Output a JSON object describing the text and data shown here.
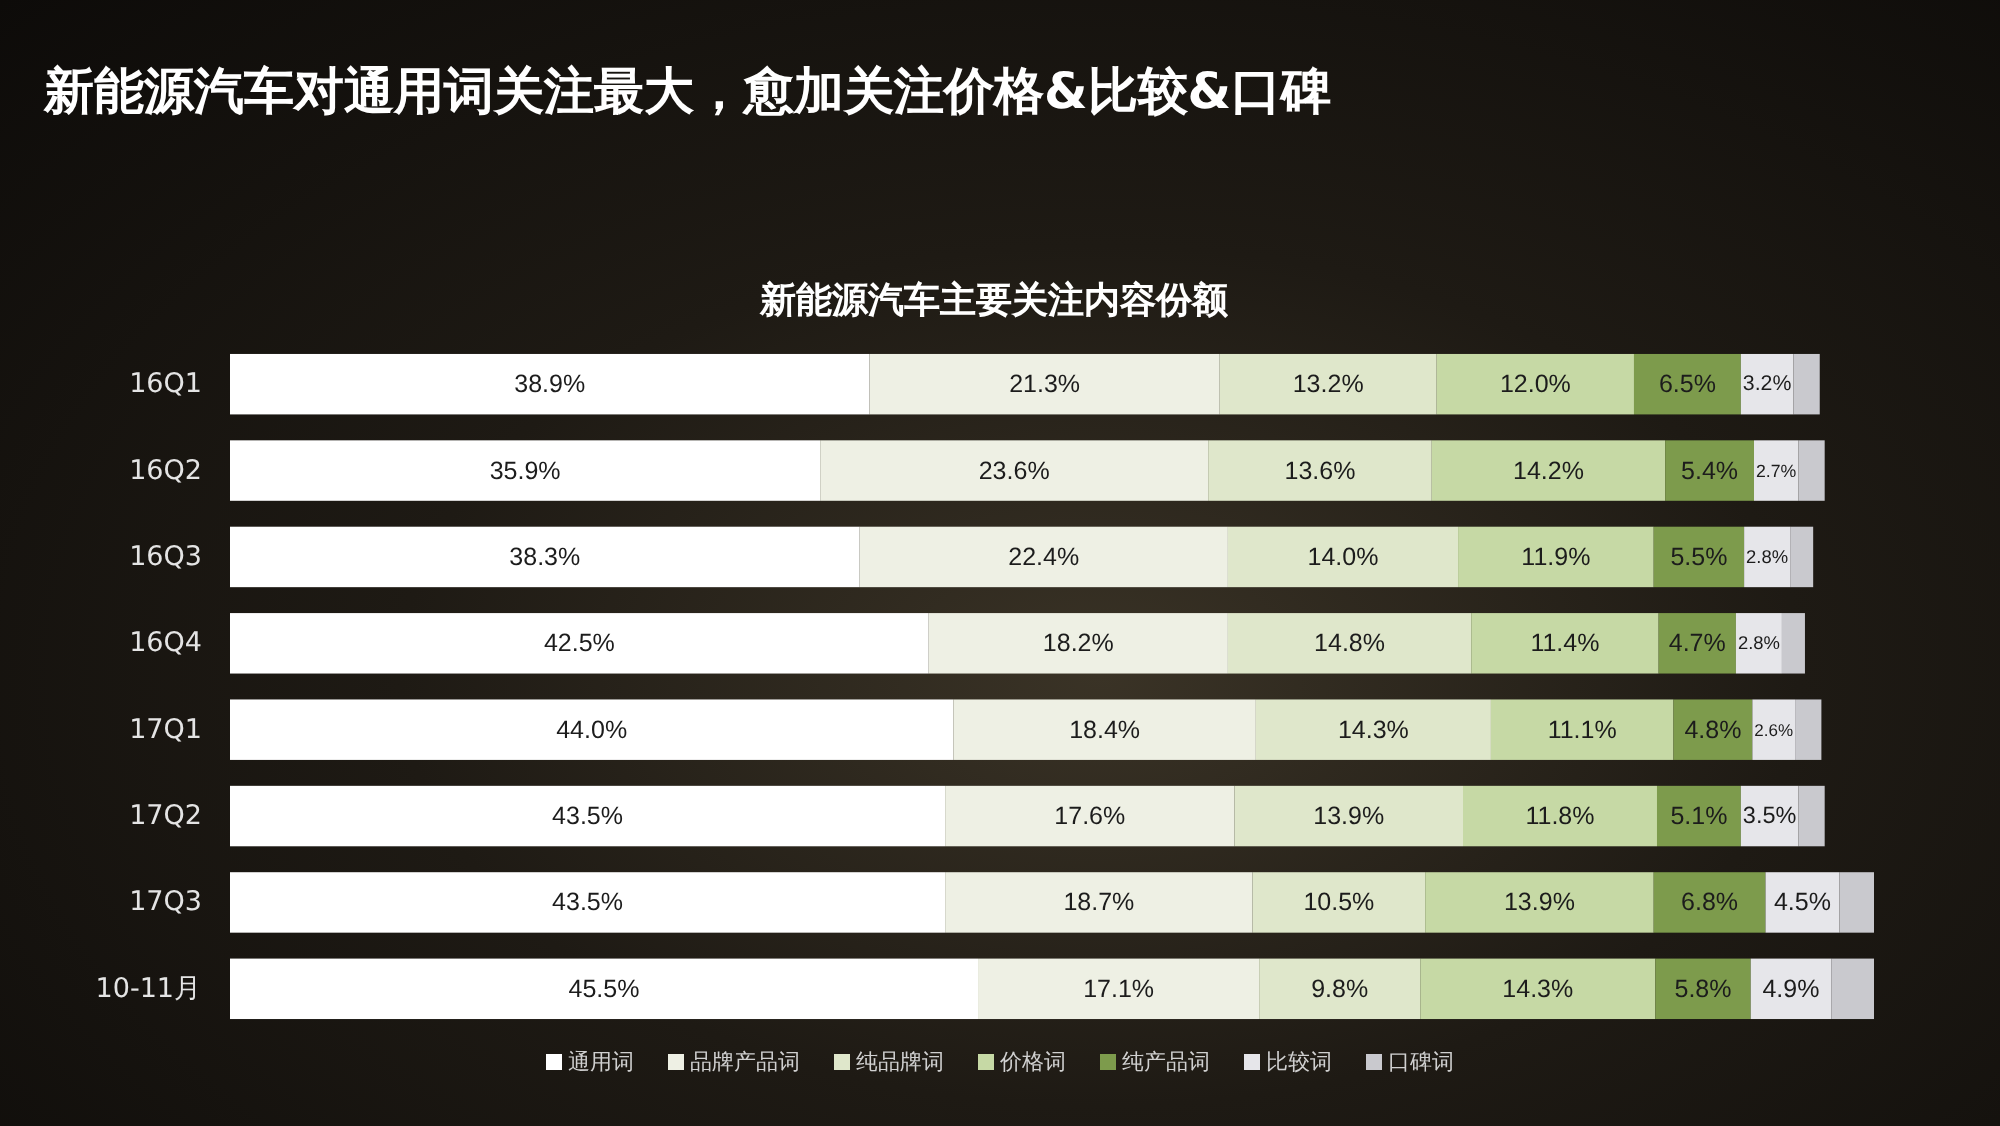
{
  "chart_data": {
    "type": "bar",
    "orientation": "horizontal",
    "stacked": true,
    "title": "新能源汽车对通用词关注最大，愈加关注价格&比较&口碑",
    "subtitle": "新能源汽车主要关注内容份额",
    "categories": [
      "16Q1",
      "16Q2",
      "16Q3",
      "16Q4",
      "17Q1",
      "17Q2",
      "17Q3",
      "10-11月"
    ],
    "series": [
      {
        "name": "通用词",
        "color": "#ffffff",
        "values": [
          38.9,
          35.9,
          38.3,
          42.5,
          44.0,
          43.5,
          43.5,
          45.5
        ],
        "value_labels": [
          "38.9%",
          "35.9%",
          "38.3%",
          "42.5%",
          "44.0%",
          "43.5%",
          "43.5%",
          "45.5%"
        ]
      },
      {
        "name": "品牌产品词",
        "color": "#eef0e4",
        "values": [
          21.3,
          23.6,
          22.4,
          18.2,
          18.4,
          17.6,
          18.7,
          17.1
        ],
        "value_labels": [
          "21.3%",
          "23.6%",
          "22.4%",
          "18.2%",
          "18.4%",
          "17.6%",
          "18.7%",
          "17.1%"
        ]
      },
      {
        "name": "纯品牌词",
        "color": "#dfe7cb",
        "values": [
          13.2,
          13.6,
          14.0,
          14.8,
          14.3,
          13.9,
          10.5,
          9.8
        ],
        "value_labels": [
          "13.2%",
          "13.6%",
          "14.0%",
          "14.8%",
          "14.3%",
          "13.9%",
          "10.5%",
          "9.8%"
        ]
      },
      {
        "name": "价格词",
        "color": "#c6d9a5",
        "values": [
          12.0,
          14.2,
          11.9,
          11.4,
          11.1,
          11.8,
          13.9,
          14.3
        ],
        "value_labels": [
          "12.0%",
          "14.2%",
          "11.9%",
          "11.4%",
          "11.1%",
          "11.8%",
          "13.9%",
          "14.3%"
        ]
      },
      {
        "name": "纯产品词",
        "color": "#7d9b4c",
        "values": [
          6.5,
          5.4,
          5.5,
          4.7,
          4.8,
          5.1,
          6.8,
          5.8
        ],
        "value_labels": [
          "6.5%",
          "5.4%",
          "5.5%",
          "4.7%",
          "4.8%",
          "5.1%",
          "6.8%",
          "5.8%"
        ]
      },
      {
        "name": "比较词",
        "color": "#e6e6ea",
        "values": [
          3.2,
          2.7,
          2.8,
          2.8,
          2.6,
          3.5,
          4.5,
          4.9
        ],
        "value_labels": [
          "3.2%",
          "2.7%",
          "2.8%",
          "2.8%",
          "2.6%",
          "3.5%",
          "4.5%",
          "4.9%"
        ]
      },
      {
        "name": "口碑词",
        "color": "#c9c9ce",
        "values": [
          1.6,
          1.6,
          1.4,
          1.4,
          1.6,
          1.6,
          2.1,
          2.6
        ]
      }
    ],
    "legend": "bottom",
    "tick_labels": "y"
  }
}
